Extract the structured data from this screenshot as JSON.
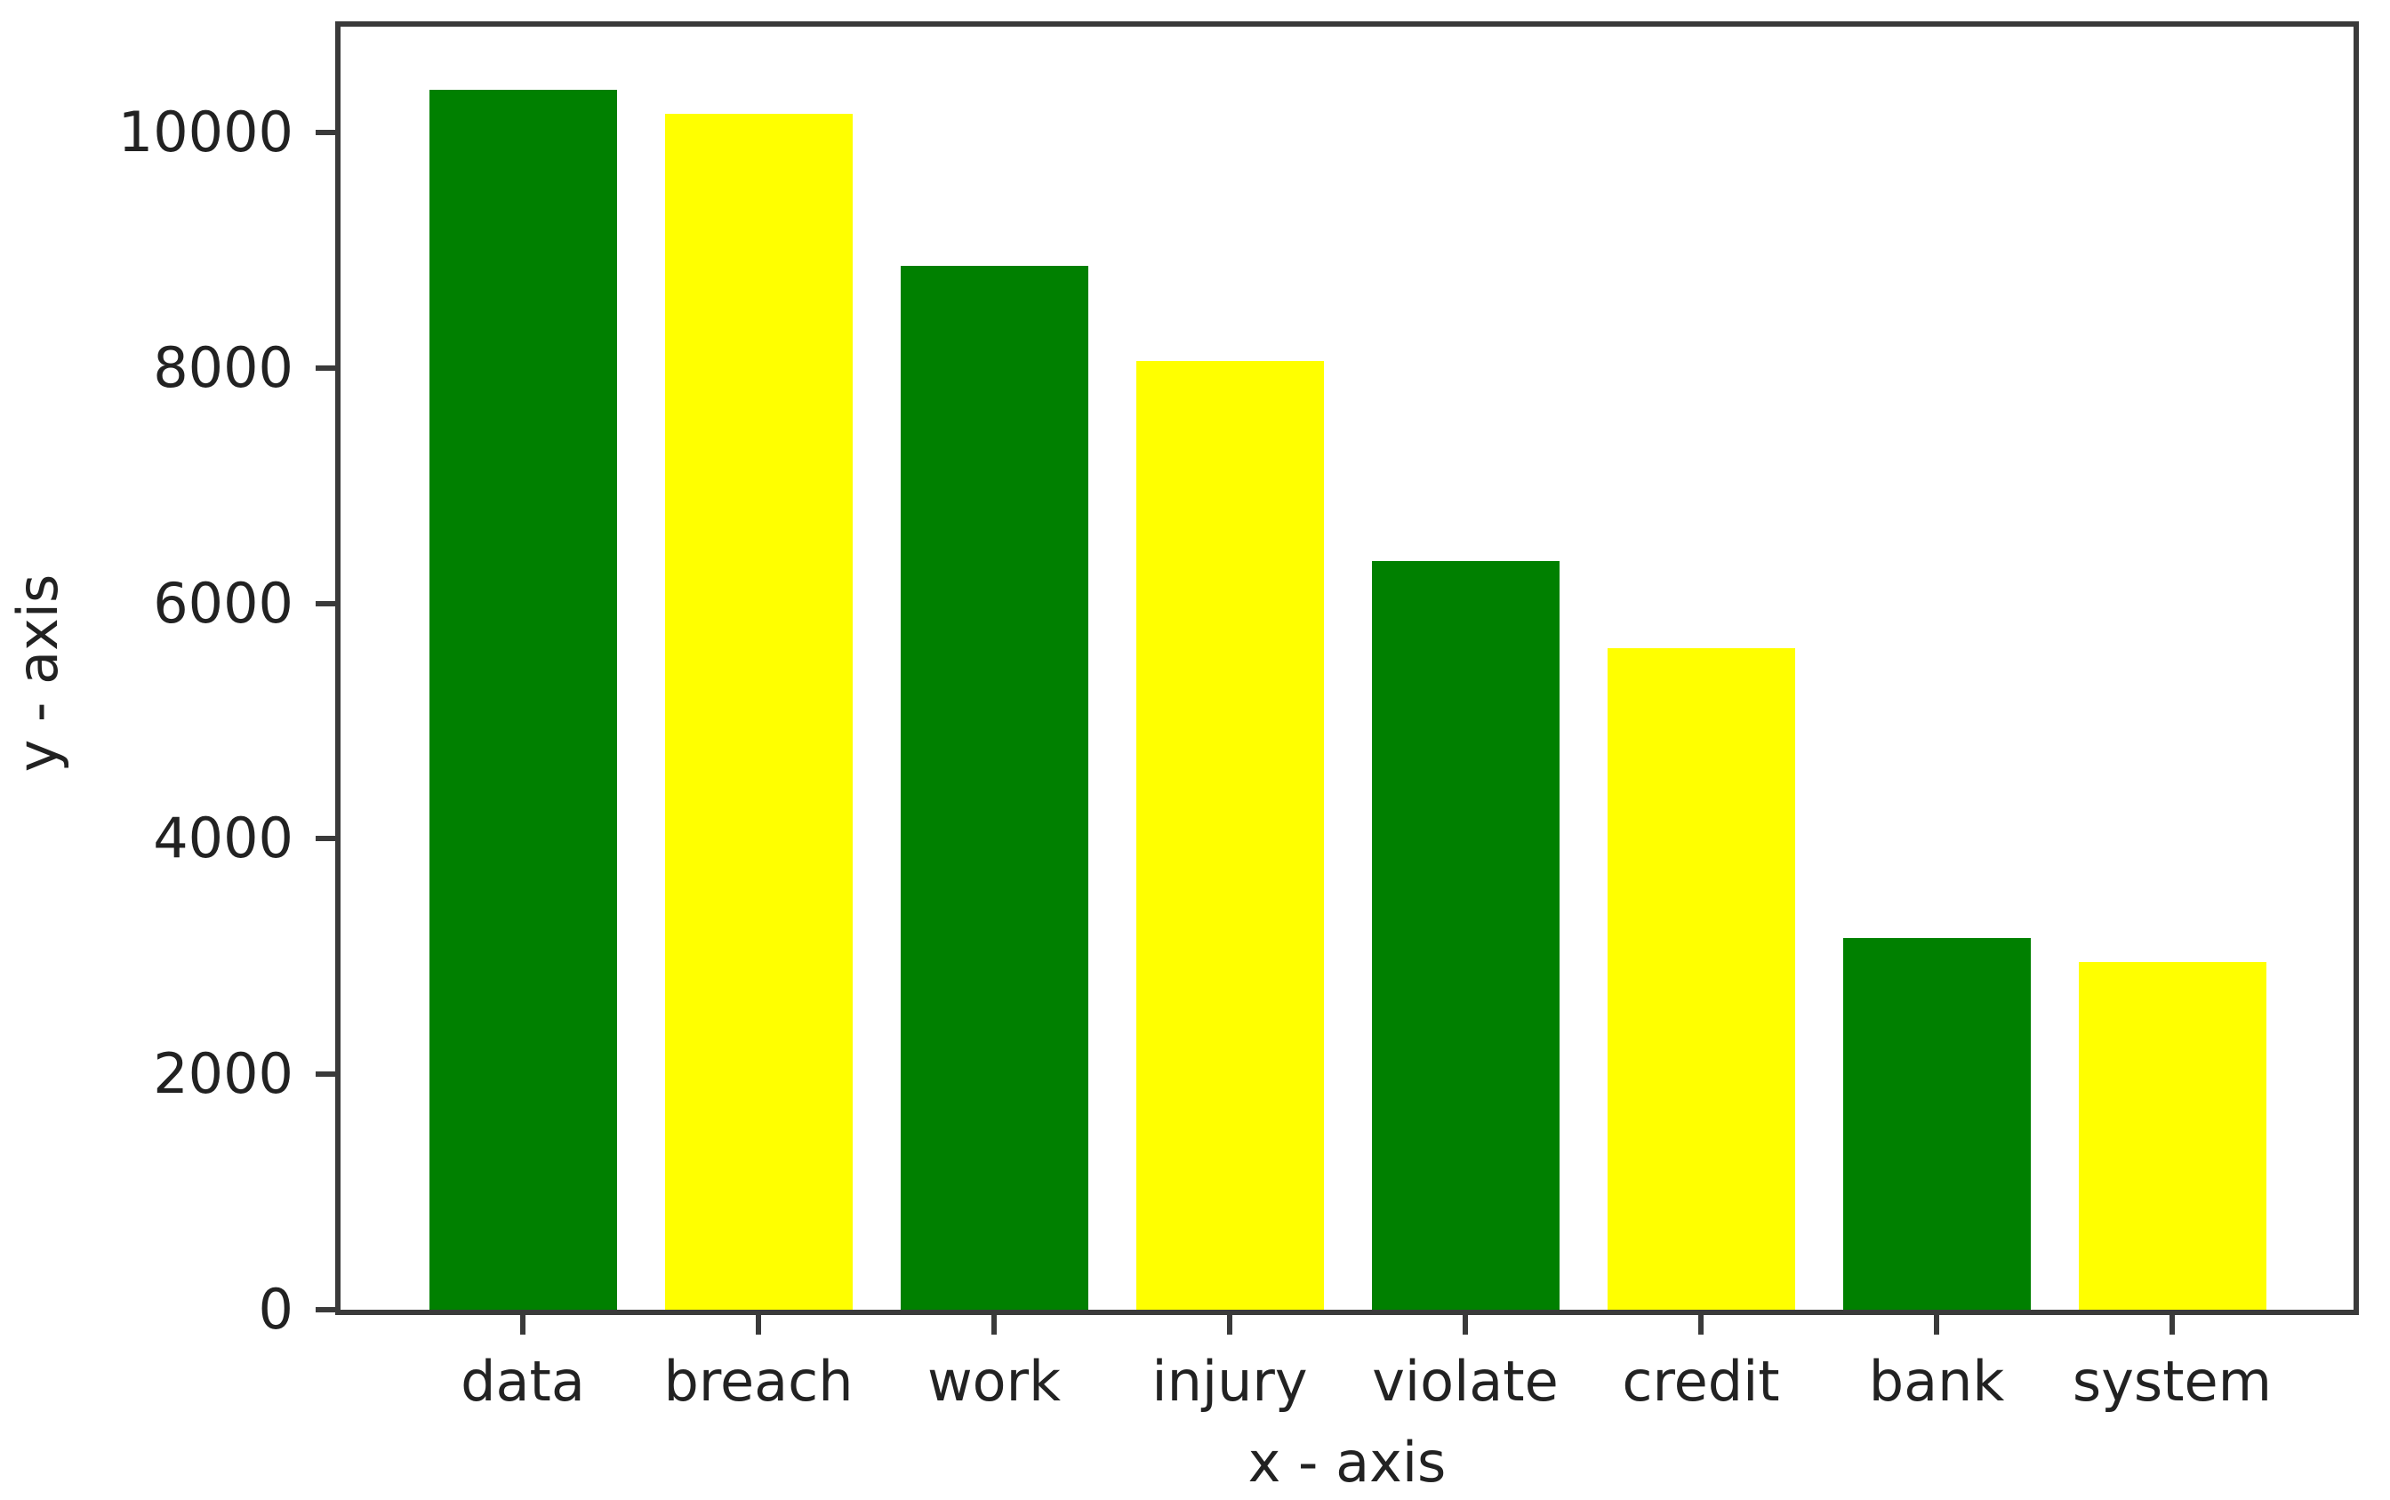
{
  "chart_data": {
    "type": "bar",
    "categories": [
      "data",
      "breach",
      "work",
      "injury",
      "violate",
      "credit",
      "bank",
      "system"
    ],
    "values": [
      10360,
      10160,
      8870,
      8060,
      6360,
      5620,
      3160,
      2950
    ],
    "bar_colors": [
      "#008000",
      "#ffff00",
      "#008000",
      "#ffff00",
      "#008000",
      "#ffff00",
      "#008000",
      "#ffff00"
    ],
    "title": "",
    "xlabel": "x - axis",
    "ylabel": "y - axis",
    "yticks": [
      0,
      2000,
      4000,
      6000,
      8000,
      10000
    ],
    "ylim": [
      0,
      10900
    ],
    "grid": false,
    "legend": false
  },
  "colors": {
    "bar_green": "#008000",
    "bar_yellow": "#ffff00",
    "axis_line": "#3a3a3a",
    "text": "#222222",
    "background": "#ffffff"
  }
}
